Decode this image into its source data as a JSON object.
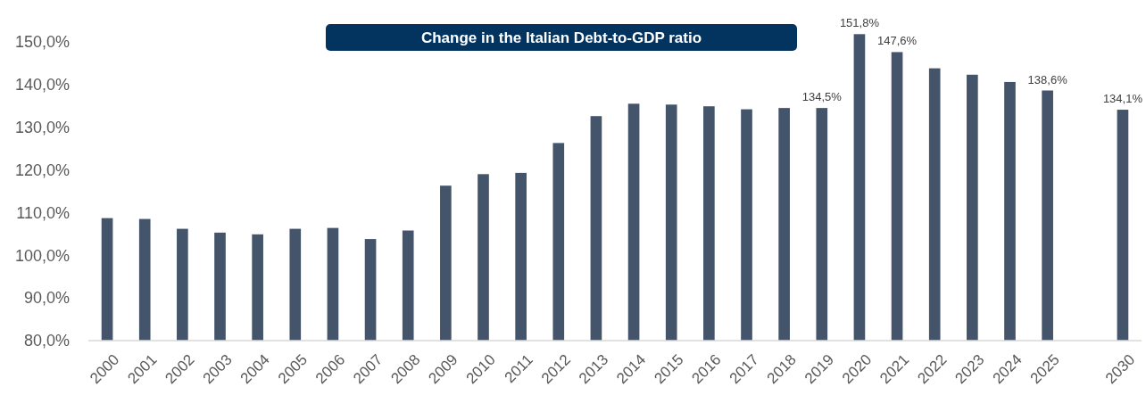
{
  "chart_data": {
    "type": "bar",
    "title": "Change in the Italian Debt-to-GDP ratio",
    "categories": [
      "2000",
      "2001",
      "2002",
      "2003",
      "2004",
      "2005",
      "2006",
      "2007",
      "2008",
      "2009",
      "2010",
      "2011",
      "2012",
      "2013",
      "2014",
      "2015",
      "2016",
      "2017",
      "2018",
      "2019",
      "2020",
      "2021",
      "2022",
      "2023",
      "2024",
      "2025",
      null,
      "2030"
    ],
    "values": [
      108.7,
      108.5,
      106.2,
      105.3,
      104.9,
      106.2,
      106.4,
      103.8,
      105.8,
      116.3,
      119.0,
      119.3,
      126.3,
      132.6,
      135.5,
      135.3,
      134.9,
      134.2,
      134.5,
      134.5,
      151.8,
      147.6,
      143.8,
      142.3,
      140.6,
      138.6,
      null,
      134.1
    ],
    "value_labels": [
      null,
      null,
      null,
      null,
      null,
      null,
      null,
      null,
      null,
      null,
      null,
      null,
      null,
      null,
      null,
      null,
      null,
      null,
      null,
      "134,5%",
      "151,8%",
      "147,6%",
      null,
      null,
      null,
      "138,6%",
      null,
      "134,1%"
    ],
    "color": "#44546a",
    "ylim": [
      80,
      155
    ],
    "yticks": [
      {
        "value": 80,
        "label": "80,0%"
      },
      {
        "value": 90,
        "label": "90,0%"
      },
      {
        "value": 100,
        "label": "100,0%"
      },
      {
        "value": 110,
        "label": "110,0%"
      },
      {
        "value": 120,
        "label": "120,0%"
      },
      {
        "value": 130,
        "label": "130,0%"
      },
      {
        "value": 140,
        "label": "140,0%"
      },
      {
        "value": 150,
        "label": "150,0%"
      }
    ],
    "grid": false
  }
}
